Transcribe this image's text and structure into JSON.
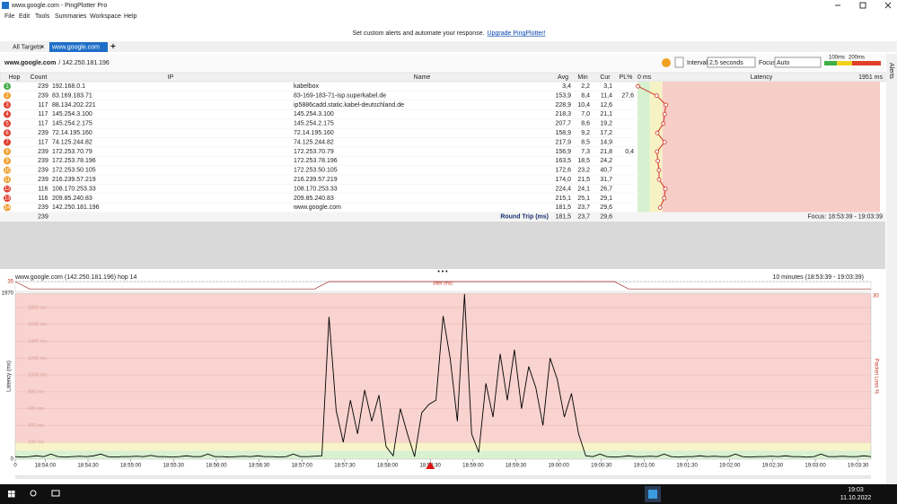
{
  "window": {
    "title": "www.google.com - PingPlotter Pro"
  },
  "menu": [
    "File",
    "Edit",
    "Tools",
    "Summaries",
    "Workspace",
    "Help"
  ],
  "tabs": [
    "All Targets",
    "www.google.com"
  ],
  "banner": {
    "text": "Set custom alerts and automate your response.",
    "link": "Upgrade PingPlotter!"
  },
  "target": {
    "host": "www.google.com",
    "address": "/ 142.250.181.196"
  },
  "controls": {
    "interval_label": "Interval",
    "interval": "2,5 seconds",
    "focus_label": "Focus",
    "focus": "Auto"
  },
  "thresholds": [
    {
      "value": 100,
      "label": "100ms"
    },
    {
      "value": 200,
      "label": "200ms"
    }
  ],
  "side_tab": "Alerts",
  "table": {
    "columns": [
      "Hop",
      "Count",
      "IP",
      "Name",
      "Avg",
      "Min",
      "Cur",
      "PL%",
      "Latency"
    ],
    "latency_ticks": [
      {
        "value": 0,
        "label": "0 ms"
      },
      {
        "value": 1951,
        "label": "1951 ms"
      }
    ],
    "rows": [
      [
        1,
        239,
        "192.168.0.1",
        "kabelbox",
        "3,4",
        "2,2",
        "3,1",
        null
      ],
      [
        2,
        239,
        "83.169.183.71",
        "83-169-183-71-isp.superkabel.de",
        "153,9",
        "8,4",
        "11,4",
        "27,6"
      ],
      [
        3,
        117,
        "88.134.202.221",
        "ip5886cadd.static.kabel-deutschland.de",
        "228,9",
        "10,4",
        "12,6",
        null
      ],
      [
        4,
        117,
        "145.254.3.100",
        "145.254.3.100",
        "218,3",
        "7,0",
        "21,1",
        null
      ],
      [
        5,
        117,
        "145.254.2.175",
        "145.254.2.175",
        "207,7",
        "8,6",
        "19,2",
        null
      ],
      [
        6,
        239,
        "72.14.195.160",
        "72.14.195.160",
        "158,9",
        "9,2",
        "17,2",
        null
      ],
      [
        7,
        117,
        "74.125.244.82",
        "74.125.244.82",
        "217,9",
        "8,5",
        "14,9",
        null
      ],
      [
        8,
        239,
        "172.253.70.79",
        "172.253.70.79",
        "156,9",
        "7,3",
        "21,8",
        "0,4"
      ],
      [
        9,
        239,
        "172.253.78.196",
        "172.253.78.196",
        "163,5",
        "18,5",
        "24,2",
        null
      ],
      [
        10,
        239,
        "172.253.50.105",
        "172.253.50.105",
        "172,6",
        "23,2",
        "40,7",
        null
      ],
      [
        11,
        239,
        "216.239.57.219",
        "216.239.57.219",
        "174,0",
        "21,5",
        "31,7",
        null
      ],
      [
        12,
        116,
        "108.170.253.33",
        "108.170.253.33",
        "224,4",
        "24,1",
        "26,7",
        null
      ],
      [
        13,
        116,
        "209.85.240.83",
        "209.85.240.83",
        "215,1",
        "25,1",
        "29,1",
        null
      ],
      [
        14,
        239,
        "142.250.181.196",
        "www.google.com",
        "181,5",
        "23,7",
        "29,6",
        null
      ]
    ],
    "summary": {
      "count": 239,
      "label": "Round Trip (ms)",
      "avg": "181,5",
      "min": "23,7",
      "cur": "29,6",
      "focus": "Focus: 18:53:39 - 19:03:39"
    }
  },
  "chart_data": {
    "type": "line",
    "title": "www.google.com (142.250.181.196) hop 14",
    "range_label": "10 minutes (18:53:39 - 19:03:39)",
    "y_label": "Latency (ms)",
    "y2_label": "Packet Loss %",
    "color": "#000000",
    "xlim": [
      0,
      600
    ],
    "xticks": [
      0,
      {
        "value": 21,
        "label": "18:54:00"
      },
      {
        "value": 51,
        "label": "18:54:30"
      },
      {
        "value": 81,
        "label": "18:55:00"
      },
      {
        "value": 111,
        "label": "18:55:30"
      },
      {
        "value": 141,
        "label": "18:56:00"
      },
      {
        "value": 171,
        "label": "18:56:30"
      },
      {
        "value": 201,
        "label": "18:57:00"
      },
      {
        "value": 231,
        "label": "18:57:30"
      },
      {
        "value": 261,
        "label": "18:58:00"
      },
      {
        "value": 291,
        "label": "18:58:30"
      },
      {
        "value": 321,
        "label": "18:59:00"
      },
      {
        "value": 351,
        "label": "18:59:30"
      },
      {
        "value": 381,
        "label": "19:00:00"
      },
      {
        "value": 411,
        "label": "19:00:30"
      },
      {
        "value": 441,
        "label": "19:01:00"
      },
      {
        "value": 471,
        "label": "19:01:30"
      },
      {
        "value": 501,
        "label": "19:02:00"
      },
      {
        "value": 531,
        "label": "19:02:30"
      },
      {
        "value": 561,
        "label": "19:03:00"
      },
      {
        "value": 591,
        "label": "19:03:30"
      }
    ],
    "ylim": [
      0,
      1970
    ],
    "yticks": [
      0,
      {
        "value": 200,
        "label": "200 ms"
      },
      {
        "value": 400,
        "label": "400 ms"
      },
      {
        "value": 600,
        "label": "600 ms"
      },
      {
        "value": 800,
        "label": "800 ms"
      },
      {
        "value": 1000,
        "label": "1000 ms"
      },
      {
        "value": 1200,
        "label": "1200 ms"
      },
      {
        "value": 1400,
        "label": "1400 ms"
      },
      {
        "value": 1600,
        "label": "1600 ms"
      },
      {
        "value": 1800,
        "label": "1800 ms"
      },
      1970
    ],
    "y2lim": [
      0,
      30
    ],
    "y2ticks": [
      30
    ],
    "x": [
      0,
      5,
      10,
      15,
      20,
      25,
      30,
      35,
      40,
      45,
      50,
      55,
      60,
      65,
      70,
      75,
      80,
      85,
      90,
      95,
      100,
      105,
      110,
      115,
      120,
      125,
      130,
      135,
      140,
      145,
      150,
      155,
      160,
      165,
      170,
      175,
      180,
      185,
      190,
      195,
      200,
      205,
      210,
      215,
      220,
      225,
      230,
      235,
      240,
      245,
      250,
      255,
      260,
      265,
      270,
      275,
      280,
      285,
      290,
      295,
      300,
      305,
      310,
      315,
      320,
      325,
      330,
      335,
      340,
      345,
      350,
      355,
      360,
      365,
      370,
      375,
      380,
      385,
      390,
      395,
      400,
      405,
      410,
      415,
      420,
      425,
      430,
      435,
      440,
      445,
      450,
      455,
      460,
      465,
      470,
      475,
      480,
      485,
      490,
      495,
      500,
      505,
      510,
      515,
      520,
      525,
      530,
      535,
      540,
      545,
      550,
      555,
      560,
      565,
      570,
      575,
      580,
      585,
      590,
      595,
      600
    ],
    "values": [
      30,
      25,
      30,
      40,
      30,
      60,
      30,
      25,
      30,
      35,
      30,
      40,
      60,
      30,
      25,
      30,
      30,
      35,
      30,
      45,
      30,
      30,
      25,
      30,
      40,
      30,
      30,
      60,
      30,
      30,
      25,
      30,
      35,
      30,
      40,
      30,
      30,
      25,
      30,
      60,
      30,
      30,
      35,
      40,
      1690,
      580,
      200,
      700,
      300,
      820,
      450,
      760,
      150,
      40,
      600,
      300,
      30,
      550,
      650,
      700,
      1700,
      1190,
      450,
      1960,
      300,
      80,
      900,
      500,
      1250,
      700,
      1300,
      600,
      1100,
      850,
      400,
      1200,
      950,
      500,
      780,
      300,
      40,
      30,
      60,
      30,
      25,
      30,
      40,
      30,
      30,
      35,
      30,
      60,
      30,
      25,
      30,
      30,
      40,
      30,
      35,
      30,
      30,
      60,
      30,
      25,
      30,
      30,
      35,
      30,
      40,
      30,
      30,
      25,
      30,
      60,
      30,
      30,
      35,
      30,
      30,
      40,
      30
    ],
    "jitter": {
      "label": "Jitter (ms)",
      "ylim": [
        0,
        35
      ],
      "yticks": [
        35
      ],
      "x": [
        0,
        10,
        20,
        30,
        40,
        50,
        60,
        70,
        80,
        90,
        100,
        110,
        120,
        130,
        140,
        150,
        160,
        170,
        180,
        190,
        200,
        210,
        220,
        230,
        240,
        250,
        260,
        270,
        280,
        290,
        300,
        310,
        320,
        330,
        340,
        350,
        360,
        370,
        380,
        390,
        400,
        410,
        420,
        430,
        440,
        450,
        460,
        470,
        480,
        490,
        500,
        510,
        520,
        530,
        540,
        550,
        560,
        570,
        580,
        590,
        600
      ],
      "values": [
        35,
        9,
        9,
        9,
        9,
        9,
        9,
        9,
        9,
        9,
        9,
        9,
        9,
        9,
        9,
        9,
        9,
        9,
        9,
        9,
        9,
        9,
        35,
        35,
        35,
        35,
        35,
        35,
        35,
        35,
        35,
        35,
        35,
        35,
        35,
        35,
        35,
        35,
        35,
        35,
        35,
        35,
        35,
        9,
        9,
        9,
        9,
        9,
        9,
        9,
        9,
        9,
        9,
        9,
        9,
        9,
        9,
        9,
        9,
        9,
        9
      ]
    }
  },
  "taskbar": {
    "time": "19:03",
    "date": "11.10.2022"
  }
}
